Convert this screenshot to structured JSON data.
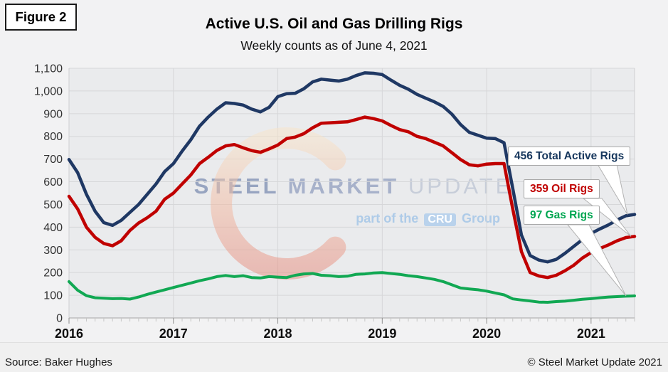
{
  "figure_label": "Figure 2",
  "title": "Active U.S. Oil and Gas Drilling Rigs",
  "subtitle": "Weekly counts as of June 4, 2021",
  "watermark": {
    "word1": "STEEL",
    "word2": "MARKET",
    "word3": "UPDATE",
    "tagline_prefix": "part of the",
    "tagline_box": "CRU",
    "tagline_suffix": "Group"
  },
  "annotations": [
    {
      "label": "456 Total Active Rigs",
      "color": "#17375d"
    },
    {
      "label": "359 Oil Rigs",
      "color": "#c00000"
    },
    {
      "label": "97 Gas Rigs",
      "color": "#00a651"
    }
  ],
  "footer": {
    "source": "Source: Baker Hughes",
    "copyright": "© Steel Market Update 2021"
  },
  "chart_data": {
    "type": "line",
    "title": "Active U.S. Oil and Gas Drilling Rigs",
    "subtitle": "Weekly counts as of June 4, 2021",
    "xlabel": "",
    "ylabel": "",
    "ylim": [
      0,
      1100
    ],
    "grid": true,
    "x_start_year": 2016,
    "points_per_year": 12,
    "x_tick_labels": [
      "2016",
      "2017",
      "2018",
      "2019",
      "2020",
      "2021"
    ],
    "y_tick_labels": [
      "0",
      "100",
      "200",
      "300",
      "400",
      "500",
      "600",
      "700",
      "800",
      "900",
      "1,000",
      "1,100"
    ],
    "series": [
      {
        "name": "Gas Rigs",
        "color": "#11a853",
        "stroke_width": 4,
        "end_value": 97,
        "values": [
          160,
          122,
          98,
          89,
          87,
          85,
          86,
          83,
          92,
          104,
          114,
          124,
          134,
          144,
          154,
          164,
          172,
          182,
          187,
          182,
          186,
          178,
          176,
          182,
          180,
          178,
          188,
          194,
          196,
          188,
          186,
          182,
          184,
          192,
          194,
          198,
          200,
          196,
          192,
          186,
          182,
          176,
          170,
          160,
          146,
          132,
          128,
          124,
          118,
          110,
          102,
          84,
          79,
          75,
          70,
          69,
          72,
          74,
          78,
          82,
          85,
          89,
          92,
          94,
          96,
          97
        ]
      },
      {
        "name": "Oil Rigs",
        "color": "#c00000",
        "stroke_width": 4.5,
        "end_value": 359,
        "values": [
          536,
          480,
          400,
          355,
          328,
          318,
          340,
          385,
          418,
          442,
          470,
          523,
          550,
          590,
          630,
          680,
          708,
          738,
          758,
          764,
          750,
          737,
          730,
          745,
          762,
          790,
          797,
          812,
          838,
          858,
          860,
          862,
          864,
          874,
          885,
          878,
          868,
          848,
          830,
          820,
          800,
          790,
          774,
          758,
          728,
          698,
          675,
          670,
          678,
          680,
          680,
          480,
          292,
          200,
          185,
          178,
          188,
          208,
          232,
          264,
          288,
          306,
          322,
          340,
          354,
          359
        ]
      },
      {
        "name": "Total Active Rigs",
        "color": "#1f3864",
        "stroke_width": 4.5,
        "end_value": 456,
        "values": [
          698,
          640,
          545,
          470,
          420,
          408,
          430,
          465,
          500,
          545,
          590,
          645,
          680,
          735,
          785,
          845,
          885,
          920,
          948,
          945,
          938,
          920,
          908,
          928,
          975,
          988,
          990,
          1010,
          1040,
          1052,
          1048,
          1044,
          1052,
          1068,
          1080,
          1078,
          1072,
          1048,
          1025,
          1008,
          985,
          968,
          952,
          932,
          898,
          852,
          818,
          805,
          792,
          790,
          772,
          570,
          365,
          275,
          255,
          247,
          258,
          285,
          315,
          345,
          372,
          392,
          410,
          432,
          450,
          456
        ]
      }
    ]
  }
}
